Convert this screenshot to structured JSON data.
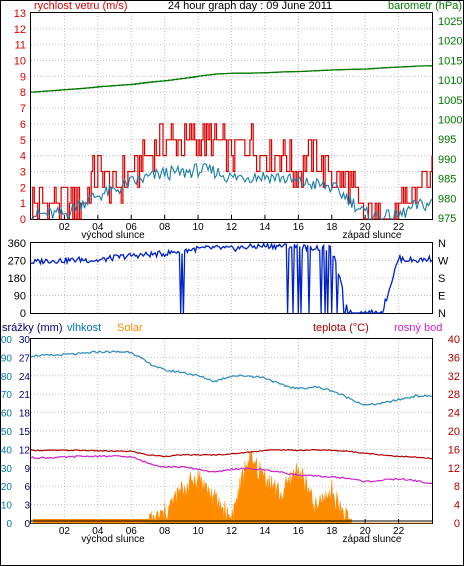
{
  "colors": {
    "wind_gust": "#dd0000",
    "wind_avg": "#1a7fa8",
    "barometer": "#007700",
    "direction": "#0022cc",
    "humidity": "#2a8ab8",
    "temperature": "#b00000",
    "dewpoint": "#cc22cc",
    "solar": "#ff8c00",
    "rain": "#000000",
    "rain_label": "#000080",
    "humidity_label": "#0077aa",
    "grid": "#c0c0c0",
    "axis": "#000000"
  },
  "wind_panel": {
    "left_title": "rychlost vetru (m/s)",
    "center_title": "24 hour graph day : 09 June 2011",
    "right_title": "barometr (hPa)",
    "left_ticks": [
      "0",
      "1",
      "2",
      "3",
      "4",
      "5",
      "6",
      "7",
      "8",
      "9",
      "10",
      "11",
      "12",
      "13"
    ],
    "right_ticks": [
      "975",
      "980",
      "985",
      "990",
      "995",
      "1000",
      "1005",
      "1010",
      "1015",
      "1020",
      "1025"
    ],
    "x_ticks": [
      "02",
      "04",
      "06",
      "08",
      "10",
      "12",
      "14",
      "16",
      "18",
      "20",
      "22"
    ],
    "sunrise_label": "východ slunce",
    "sunset_label": "západ slunce"
  },
  "direction_panel": {
    "left_ticks": [
      "0",
      "90",
      "180",
      "270",
      "360"
    ],
    "right_ticks": [
      "N",
      "E",
      "S",
      "W",
      "N"
    ]
  },
  "bottom_panel": {
    "label_rain": "srážky (mm)",
    "label_humidity": "vlhkost",
    "label_solar": "Solar",
    "label_temp": "teplota (°C)",
    "label_dew": "rosný bod",
    "left_ticks_rain": [
      "0",
      "3",
      "6",
      "9",
      "12",
      "15",
      "18",
      "21",
      "24",
      "27",
      "30"
    ],
    "left_ticks_hum": [
      "0",
      "10",
      "20",
      "30",
      "40",
      "50",
      "60",
      "70",
      "80",
      "90",
      "100"
    ],
    "right_ticks": [
      "0",
      "4",
      "8",
      "12",
      "16",
      "20",
      "24",
      "28",
      "32",
      "36",
      "40"
    ],
    "x_ticks": [
      "02",
      "04",
      "06",
      "08",
      "10",
      "12",
      "14",
      "16",
      "18",
      "20",
      "22"
    ],
    "sunrise_label": "východ slunce",
    "sunset_label": "západ slunce"
  },
  "chart_data": [
    {
      "type": "line",
      "title": "24 hour graph day : 09 June 2011",
      "xlabel": "",
      "xlim": [
        0,
        24
      ],
      "ylabel_left": "rychlost vetru (m/s)",
      "ylim_left": [
        0,
        13
      ],
      "ylabel_right": "barometr (hPa)",
      "ylim_right": [
        975,
        1025
      ],
      "annotations": [
        {
          "x": 5.4,
          "text": "východ slunce"
        },
        {
          "x": 21.2,
          "text": "západ slunce"
        }
      ],
      "x": [
        0,
        1,
        2,
        3,
        4,
        5,
        6,
        7,
        8,
        9,
        10,
        11,
        12,
        13,
        14,
        15,
        16,
        17,
        18,
        19,
        20,
        21,
        22,
        23,
        24
      ],
      "series": [
        {
          "name": "",
          "axis": "left",
          "style": "gust",
          "values": [
            1,
            1,
            1,
            1,
            3,
            2,
            3,
            4,
            5,
            5,
            5,
            5,
            4,
            5,
            4,
            4,
            3,
            4,
            3,
            2,
            0,
            0,
            0,
            2,
            3
          ]
        },
        {
          "name": "",
          "axis": "left",
          "style": "avg",
          "values": [
            0.3,
            0.3,
            0.3,
            1,
            1.5,
            1.8,
            2.3,
            2.6,
            2.9,
            2.9,
            3.1,
            3,
            2.6,
            2.7,
            2.7,
            2.6,
            2.3,
            2.2,
            2,
            1.3,
            0.3,
            0.1,
            0.2,
            0.8,
            1
          ]
        },
        {
          "name": "",
          "axis": "right",
          "values": [
            1005.8,
            1006.1,
            1006.4,
            1006.7,
            1007.1,
            1007.4,
            1007.7,
            1008.2,
            1008.6,
            1009.1,
            1009.7,
            1010.2,
            1010.4,
            1010.4,
            1010.5,
            1010.7,
            1010.8,
            1011,
            1011.2,
            1011.3,
            1011.4,
            1011.7,
            1011.9,
            1012.1,
            1012.2
          ]
        }
      ]
    },
    {
      "type": "line",
      "title": "",
      "xlim": [
        0,
        24
      ],
      "ylim_left": [
        0,
        360
      ],
      "right_tick_labels": [
        "N",
        "E",
        "S",
        "W",
        "N"
      ],
      "x": [
        0,
        1,
        2,
        3,
        4,
        5,
        6,
        7,
        8,
        9,
        10,
        11,
        12,
        13,
        14,
        15,
        16,
        17,
        18,
        19,
        20,
        21,
        22,
        23,
        24
      ],
      "series": [
        {
          "name": "",
          "values": [
            260,
            270,
            270,
            275,
            270,
            285,
            295,
            300,
            305,
            320,
            330,
            335,
            330,
            340,
            345,
            345,
            340,
            335,
            330,
            0,
            0,
            0,
            280,
            270,
            280
          ]
        }
      ]
    },
    {
      "type": "line",
      "title": "",
      "xlim": [
        0,
        24
      ],
      "ylim_left_rain": [
        0,
        30
      ],
      "ylim_left_humidity": [
        0,
        100
      ],
      "ylim_right": [
        0,
        40
      ],
      "annotations": [
        {
          "x": 5.4,
          "text": "východ slunce"
        },
        {
          "x": 21.2,
          "text": "západ slunce"
        }
      ],
      "x": [
        0,
        1,
        2,
        3,
        4,
        5,
        6,
        7,
        8,
        9,
        10,
        11,
        12,
        13,
        14,
        15,
        16,
        17,
        18,
        19,
        20,
        21,
        22,
        23,
        24
      ],
      "series": [
        {
          "name": "vlhkost",
          "axis": "left_humidity",
          "values": [
            91,
            91,
            91.5,
            92,
            93,
            93,
            93,
            87,
            83,
            82,
            80,
            77,
            80,
            80,
            79,
            75,
            73,
            74,
            72,
            68,
            64,
            65,
            67,
            69,
            69
          ]
        },
        {
          "name": "teplota (°C)",
          "axis": "right",
          "values": [
            15.8,
            15.8,
            15.8,
            15.8,
            15.7,
            15.6,
            15.6,
            14.8,
            14.5,
            14.8,
            14.8,
            14.8,
            15,
            15.4,
            15.8,
            15.9,
            15.8,
            15.9,
            15.8,
            15.6,
            15.2,
            14.8,
            14.5,
            14.3,
            14
          ]
        },
        {
          "name": "rosný bod",
          "axis": "right",
          "values": [
            14.2,
            14.2,
            14.3,
            14.5,
            14.5,
            14.5,
            14.4,
            13,
            12.2,
            12.2,
            11.7,
            11,
            11.7,
            11.8,
            11.6,
            11,
            10.4,
            10.2,
            10,
            9.7,
            9,
            9.3,
            9.6,
            9.2,
            8.5
          ]
        },
        {
          "name": "Solar",
          "axis": "right",
          "style": "area",
          "values": [
            0,
            0,
            0,
            0,
            0,
            0,
            0,
            0,
            2,
            7,
            10,
            5,
            1,
            14,
            10,
            6,
            12,
            3,
            7,
            0,
            0,
            0,
            0,
            0,
            0
          ]
        },
        {
          "name": "srážky (mm)",
          "axis": "left_rain",
          "values": [
            0,
            0,
            0,
            0,
            0,
            0,
            0,
            0,
            0,
            0,
            0,
            0,
            0,
            0,
            0,
            0,
            0,
            0,
            0,
            0,
            0,
            0,
            0,
            0,
            0
          ]
        }
      ]
    }
  ]
}
